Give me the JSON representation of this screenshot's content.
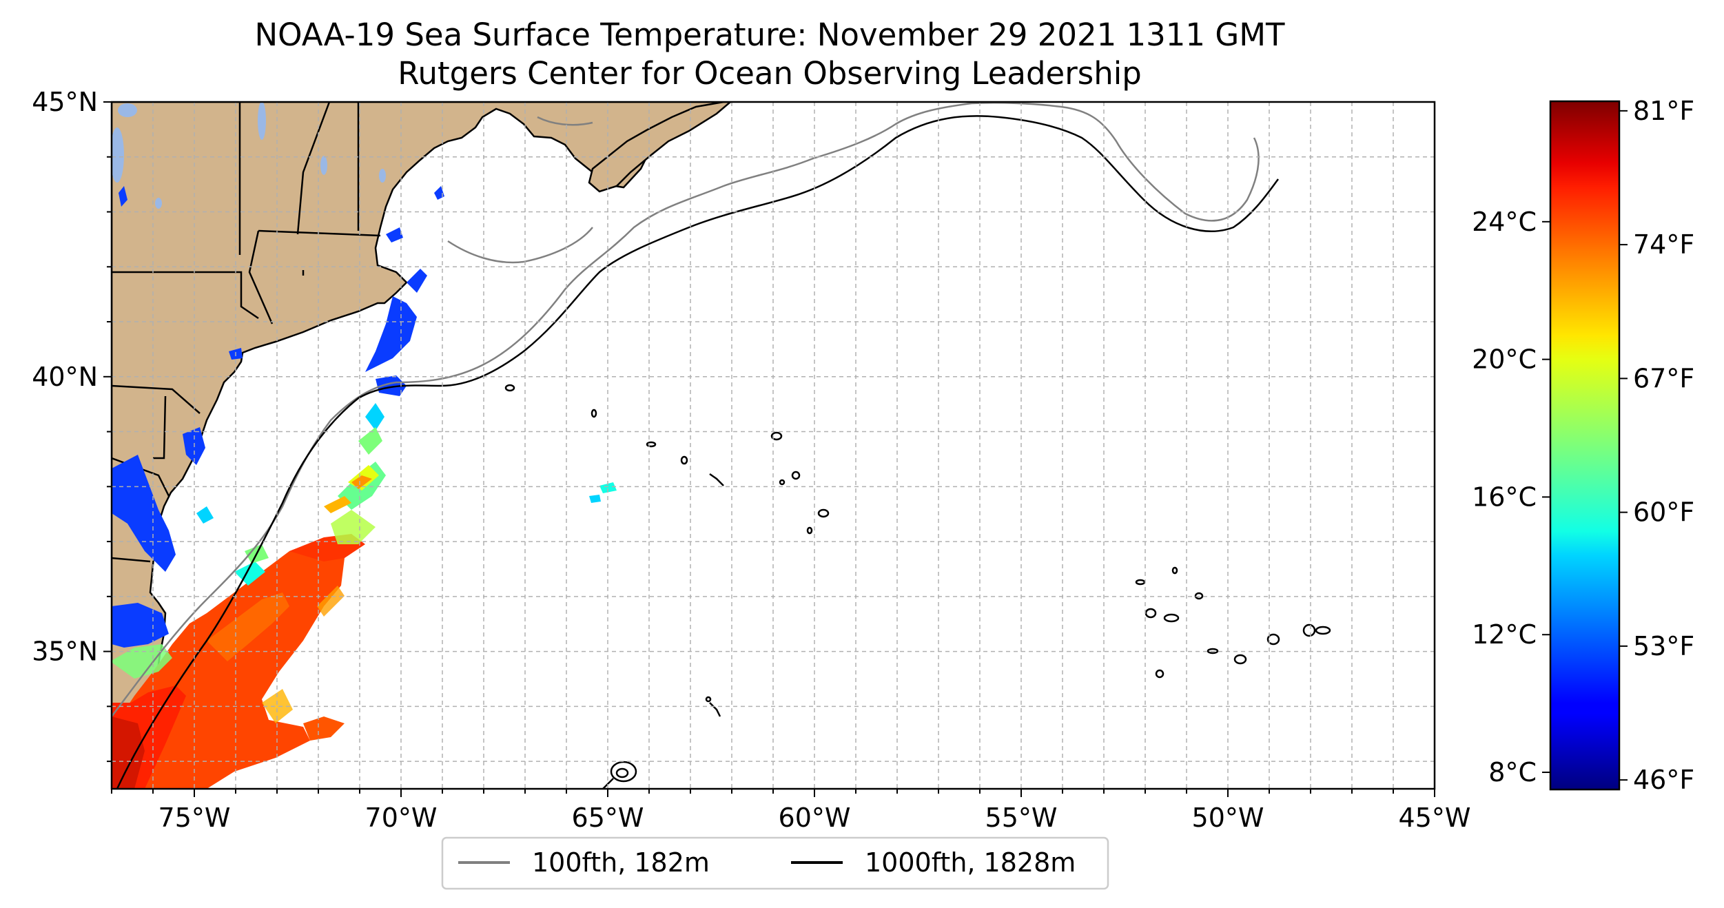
{
  "title_line1": "NOAA-19 Sea Surface Temperature: November 29 2021 1311 GMT",
  "title_line2": "Rutgers Center for Ocean Observing Leadership",
  "chart_data": {
    "type": "heatmap",
    "map": {
      "lon_range": [
        -77,
        -45
      ],
      "lat_range": [
        32.5,
        45
      ],
      "x_ticks": [
        {
          "value": -75,
          "label": "75°W"
        },
        {
          "value": -70,
          "label": "70°W"
        },
        {
          "value": -65,
          "label": "65°W"
        },
        {
          "value": -60,
          "label": "60°W"
        },
        {
          "value": -55,
          "label": "55°W"
        },
        {
          "value": -50,
          "label": "50°W"
        },
        {
          "value": -45,
          "label": "45°W"
        }
      ],
      "y_ticks": [
        {
          "value": 45,
          "label": "45°N"
        },
        {
          "value": 40,
          "label": "40°N"
        },
        {
          "value": 35,
          "label": "35°N"
        }
      ],
      "grid": true,
      "grid_style": "dashed",
      "land_color": "#d2b48c"
    },
    "colorbar": {
      "colormap": "jet",
      "range_c": [
        7.5,
        27.5
      ],
      "celsius_ticks": [
        {
          "value": 8,
          "label": "8°C"
        },
        {
          "value": 12,
          "label": "12°C"
        },
        {
          "value": 16,
          "label": "16°C"
        },
        {
          "value": 20,
          "label": "20°C"
        },
        {
          "value": 24,
          "label": "24°C"
        }
      ],
      "fahrenheit_ticks": [
        {
          "value": 46,
          "label": "46°F"
        },
        {
          "value": 53,
          "label": "53°F"
        },
        {
          "value": 60,
          "label": "60°F"
        },
        {
          "value": 67,
          "label": "67°F"
        },
        {
          "value": 74,
          "label": "74°F"
        },
        {
          "value": 81,
          "label": "81°F"
        }
      ]
    },
    "legend": {
      "placement": "bottom-center",
      "entries": [
        {
          "label": "100fth, 182m",
          "color": "#808080"
        },
        {
          "label": "1000fth, 1828m",
          "color": "#000000"
        }
      ]
    }
  }
}
